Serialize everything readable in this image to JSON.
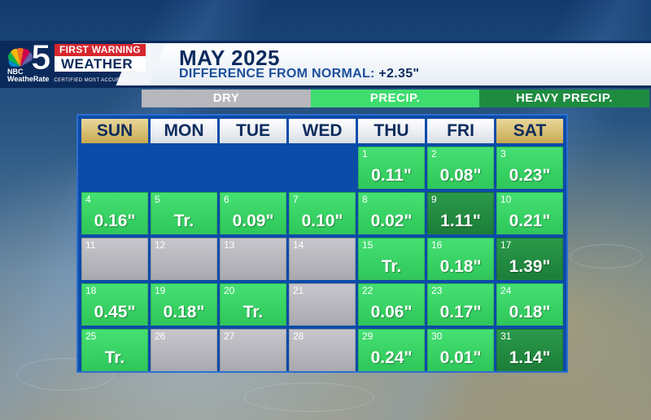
{
  "branding": {
    "nbc_label": "NBC",
    "channel_number": "5",
    "first_warning": "FIRST WARNING",
    "weather": "WEATHER",
    "weatherate": "WeatheRate",
    "weatherate_tag": "CERTIFIED MOST ACCURATE"
  },
  "header": {
    "title": "MAY 2025",
    "subtitle_prefix": "DIFFERENCE FROM NORMAL: ",
    "subtitle_value": "+2.35\""
  },
  "legend": {
    "dry": "DRY",
    "precip": "PRECIP.",
    "heavy": "HEAVY PRECIP."
  },
  "colors": {
    "dry": "#b7b7bd",
    "precip": "#3fdc6e",
    "heavy": "#1f8b40",
    "weekend_header": "#d4b75f",
    "calendar_bg": "#0c4ca8"
  },
  "day_headers": [
    "SUN",
    "MON",
    "TUE",
    "WED",
    "THU",
    "FRI",
    "SAT"
  ],
  "days": [
    {
      "day": "1",
      "amount": "0.11\"",
      "category": "precip"
    },
    {
      "day": "2",
      "amount": "0.08\"",
      "category": "precip"
    },
    {
      "day": "3",
      "amount": "0.23\"",
      "category": "precip"
    },
    {
      "day": "4",
      "amount": "0.16\"",
      "category": "precip"
    },
    {
      "day": "5",
      "amount": "Tr.",
      "category": "precip"
    },
    {
      "day": "6",
      "amount": "0.09\"",
      "category": "precip"
    },
    {
      "day": "7",
      "amount": "0.10\"",
      "category": "precip"
    },
    {
      "day": "8",
      "amount": "0.02\"",
      "category": "precip"
    },
    {
      "day": "9",
      "amount": "1.11\"",
      "category": "heavy"
    },
    {
      "day": "10",
      "amount": "0.21\"",
      "category": "precip"
    },
    {
      "day": "11",
      "amount": "",
      "category": "dry"
    },
    {
      "day": "12",
      "amount": "",
      "category": "dry"
    },
    {
      "day": "13",
      "amount": "",
      "category": "dry"
    },
    {
      "day": "14",
      "amount": "",
      "category": "dry"
    },
    {
      "day": "15",
      "amount": "Tr.",
      "category": "precip"
    },
    {
      "day": "16",
      "amount": "0.18\"",
      "category": "precip"
    },
    {
      "day": "17",
      "amount": "1.39\"",
      "category": "heavy"
    },
    {
      "day": "18",
      "amount": "0.45\"",
      "category": "precip"
    },
    {
      "day": "19",
      "amount": "0.18\"",
      "category": "precip"
    },
    {
      "day": "20",
      "amount": "Tr.",
      "category": "precip"
    },
    {
      "day": "21",
      "amount": "",
      "category": "dry"
    },
    {
      "day": "22",
      "amount": "0.06\"",
      "category": "precip"
    },
    {
      "day": "23",
      "amount": "0.17\"",
      "category": "precip"
    },
    {
      "day": "24",
      "amount": "0.18\"",
      "category": "precip"
    },
    {
      "day": "25",
      "amount": "Tr.",
      "category": "precip"
    },
    {
      "day": "26",
      "amount": "",
      "category": "dry"
    },
    {
      "day": "27",
      "amount": "",
      "category": "dry"
    },
    {
      "day": "28",
      "amount": "",
      "category": "dry"
    },
    {
      "day": "29",
      "amount": "0.24\"",
      "category": "precip"
    },
    {
      "day": "30",
      "amount": "0.01\"",
      "category": "precip"
    },
    {
      "day": "31",
      "amount": "1.14\"",
      "category": "heavy"
    }
  ],
  "month_start_weekday": 4
}
